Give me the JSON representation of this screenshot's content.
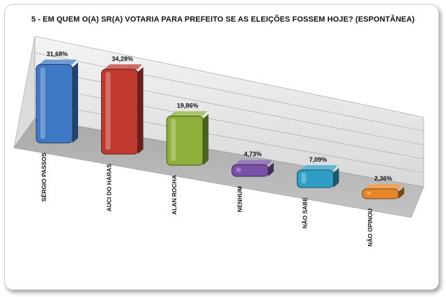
{
  "chart_data": {
    "type": "bar",
    "title": "5 - EM QUEM O(A) SR(A) VOTARIA PARA PREFEITO SE AS ELEIÇÕES FOSSEM HOJE? (ESPONTÂNEA)",
    "categories": [
      "SÉRGIO PASSOS",
      "AUCI DO HARAS",
      "ALAN ROCHA",
      "NENHUM",
      "NÃO SABE",
      "NÃO OPINOU"
    ],
    "values": [
      31.68,
      34.28,
      19.86,
      4.73,
      7.09,
      2.36
    ],
    "value_labels": [
      "31,68%",
      "34,28%",
      "19,86%",
      "4,73%",
      "7,09%",
      "2,36%"
    ],
    "colors": [
      "#3f78c4",
      "#c0392f",
      "#8cb03a",
      "#7850a8",
      "#2f9ec4",
      "#e8862a"
    ],
    "unit": "%",
    "grid": true,
    "style": "3d"
  }
}
